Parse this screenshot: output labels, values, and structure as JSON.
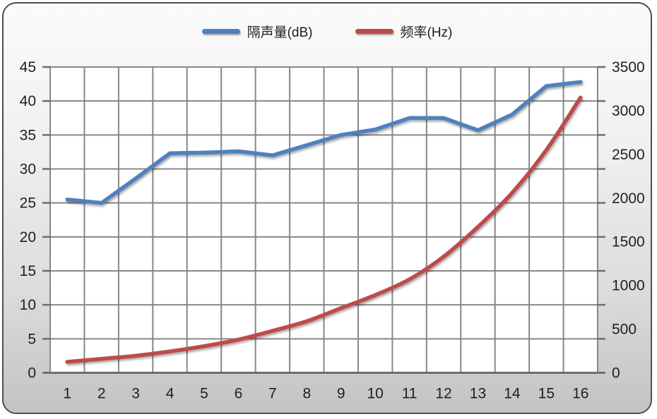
{
  "legend": {
    "series1_label": "隔声量(dB)",
    "series2_label": "频率(Hz)"
  },
  "colors": {
    "series1": "#4f81bd",
    "series2": "#be4b48",
    "grid": "#878787",
    "axis_line": "#6e6e6e",
    "axis_text": "#1f1f1f",
    "plot_bg": "#ffffff"
  },
  "chart_data": {
    "type": "line",
    "title": "",
    "categories": [
      "1",
      "2",
      "3",
      "4",
      "5",
      "6",
      "7",
      "8",
      "9",
      "10",
      "11",
      "12",
      "13",
      "14",
      "15",
      "16"
    ],
    "series": [
      {
        "name": "隔声量(dB)",
        "axis": "left",
        "color": "#4f81bd",
        "smooth": false,
        "values": [
          25.5,
          25.0,
          28.6,
          32.3,
          32.4,
          32.6,
          32.0,
          33.5,
          35.0,
          35.8,
          37.5,
          37.5,
          35.7,
          38.0,
          42.2,
          42.8
        ]
      },
      {
        "name": "频率(Hz)",
        "axis": "right",
        "color": "#be4b48",
        "smooth": true,
        "values": [
          125,
          160,
          195,
          245,
          305,
          380,
          480,
          590,
          740,
          890,
          1070,
          1330,
          1670,
          2060,
          2550,
          3150
        ]
      }
    ],
    "left_axis": {
      "min": 0,
      "max": 45,
      "step": 5,
      "tick_labels": [
        "0",
        "5",
        "10",
        "15",
        "20",
        "25",
        "30",
        "35",
        "40",
        "45"
      ]
    },
    "right_axis": {
      "min": 0,
      "max": 3500,
      "step": 500,
      "tick_labels": [
        "0",
        "500",
        "1000",
        "1500",
        "2000",
        "2500",
        "3000",
        "3500"
      ]
    },
    "grid": true,
    "legend_position": "top"
  }
}
